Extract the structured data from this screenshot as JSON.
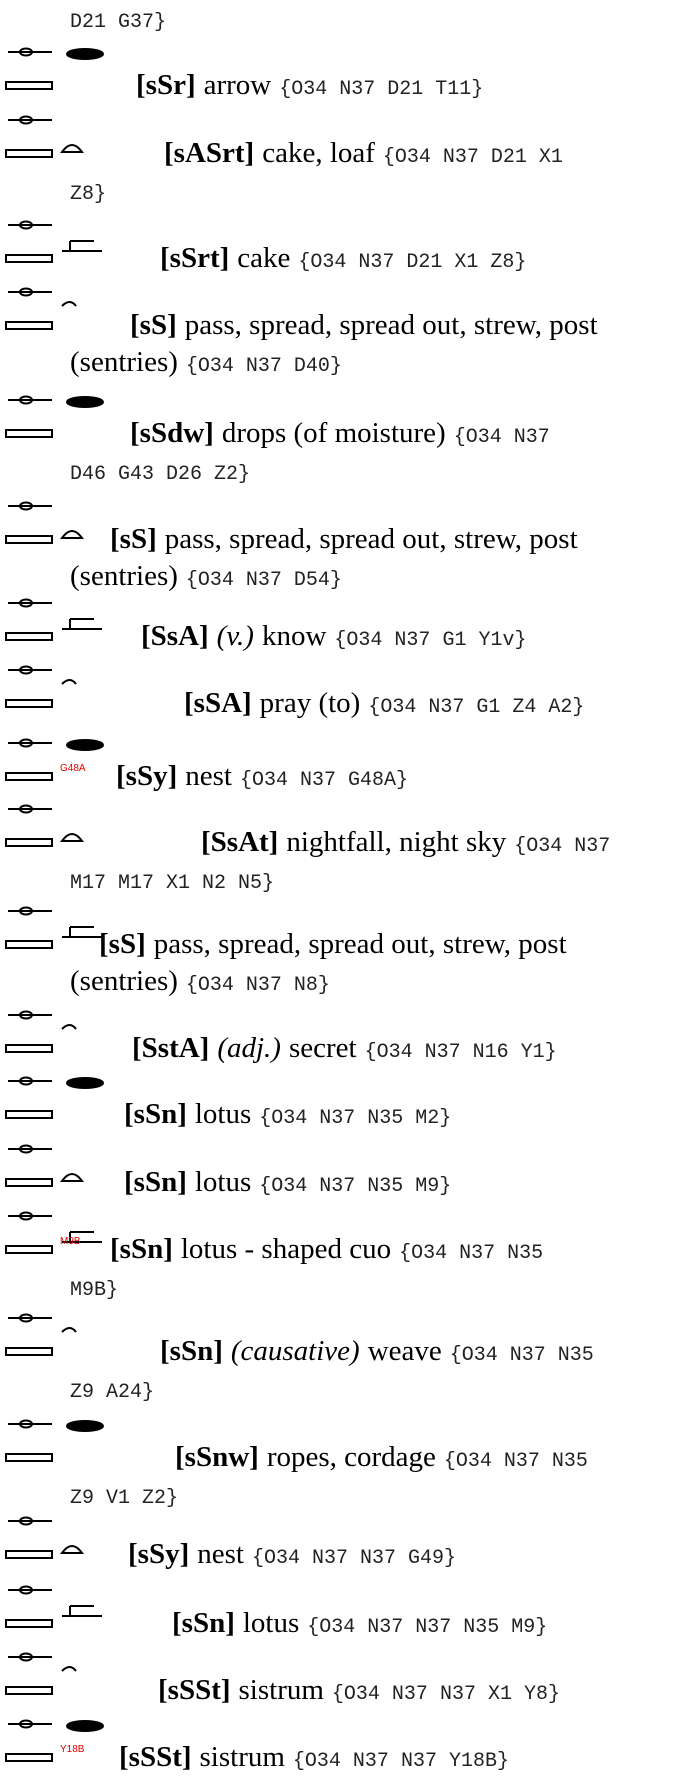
{
  "continuation": "D21 G37}",
  "entries": [
    {
      "translit": "[sSr]",
      "meaning": "arrow",
      "codes": "{O34 N37 D21 T11}"
    },
    {
      "translit": "[sASrt]",
      "meaning": "cake, loaf",
      "codes": "{O34 N37 D21 X1",
      "cont_codes": "Z8}"
    },
    {
      "translit": "[sSrt]",
      "meaning": "cake",
      "codes": "{O34 N37 D21 X1 Z8}"
    },
    {
      "translit": "[sS]",
      "meaning": "pass, spread, spread out, strew, post",
      "cont_meaning": "(sentries)",
      "cont_codes": "{O34 N37 D40}"
    },
    {
      "translit": "[sSdw]",
      "meaning": "drops (of moisture)",
      "codes": "{O34 N37",
      "cont_codes": "D46 G43 D26 Z2}"
    },
    {
      "translit": "[sS]",
      "meaning": "pass, spread, spread out, strew, post",
      "cont_meaning": "(sentries)",
      "cont_codes": "{O34 N37 D54}"
    },
    {
      "translit": "[SsA]",
      "pos": "(v.)",
      "meaning": "know",
      "codes": "{O34 N37 G1 Y1v}"
    },
    {
      "translit": "[sSA]",
      "meaning": "pray (to)",
      "codes": "{O34 N37 G1 Z4 A2}"
    },
    {
      "sign_label": "G48A",
      "translit": "[sSy]",
      "meaning": "nest",
      "codes": "{O34 N37 G48A}"
    },
    {
      "translit": "[SsAt]",
      "meaning": "nightfall, night sky",
      "codes": "{O34 N37",
      "cont_codes": "M17 M17 X1 N2 N5}"
    },
    {
      "translit": "[sS]",
      "meaning": "pass, spread, spread out, strew, post",
      "cont_meaning": "(sentries)",
      "cont_codes": "{O34 N37 N8}"
    },
    {
      "translit": "[SstA]",
      "pos": "(adj.)",
      "meaning": "secret",
      "codes": "{O34 N37 N16 Y1}"
    },
    {
      "translit": "[sSn]",
      "meaning": "lotus",
      "codes": "{O34 N37 N35 M2}"
    },
    {
      "translit": "[sSn]",
      "meaning": "lotus",
      "codes": "{O34 N37 N35 M9}"
    },
    {
      "sign_label": "M9B",
      "translit": "[sSn]",
      "meaning": "lotus - shaped cuo",
      "codes": "{O34 N37 N35",
      "cont_codes": "M9B}"
    },
    {
      "translit": "[sSn]",
      "pos": "(causative)",
      "meaning": "weave",
      "codes": "{O34 N37 N35",
      "cont_codes": "Z9 A24}"
    },
    {
      "translit": "[sSnw]",
      "meaning": "ropes, cordage",
      "codes": "{O34 N37 N35",
      "cont_codes": "Z9 V1 Z2}"
    },
    {
      "translit": "[sSy]",
      "meaning": "nest",
      "codes": "{O34 N37 N37 G49}"
    },
    {
      "translit": "[sSn]",
      "meaning": "lotus",
      "codes": "{O34 N37 N37 N35 M9}"
    },
    {
      "translit": "[sSSt]",
      "meaning": "sistrum",
      "codes": "{O34 N37 N37 X1 Y8}"
    },
    {
      "sign_label": "Y18B",
      "translit": "[sSSt]",
      "meaning": "sistrum",
      "codes": "{O34 N37 N37 Y18B}"
    }
  ]
}
